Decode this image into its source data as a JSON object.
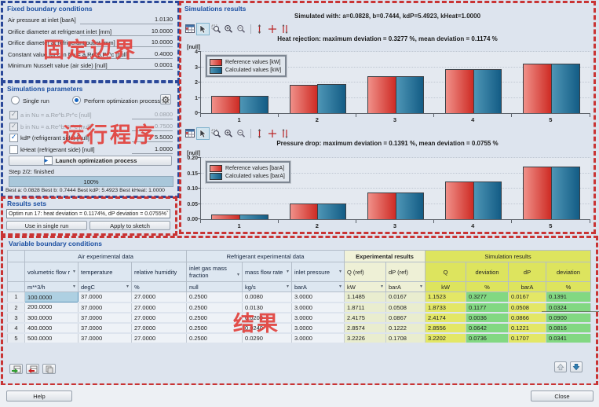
{
  "annotations": {
    "fixed_boundary_cn": "固定边界",
    "run_process_cn": "运行程序",
    "results_cn": "结果"
  },
  "colors": {
    "reference_red": "#ce2b24",
    "calculated_blue": "#135c85",
    "deviation_green": "#82d882",
    "simulation_yellow": "#e3e766",
    "annotation_red": "#c93434",
    "annotation_blue": "#2a4899"
  },
  "fixed_boundary": {
    "title": "Fixed boundary conditions",
    "fields": [
      {
        "label": "Air pressure at inlet [barA]",
        "value": "1.0130"
      },
      {
        "label": "Orifice diameter at refrigerant inlet [mm]",
        "value": "10.0000"
      },
      {
        "label": "Orifice diameter at refrigerant outlet [mm]",
        "value": "10.0000"
      },
      {
        "label": "Constant value for c in Nu = a.Re^b.Pr^c [null]",
        "value": "0.4000"
      },
      {
        "label": "Minimum Nusselt value (air side) [null]",
        "value": "0.0001"
      }
    ]
  },
  "sim_params": {
    "title": "Simulations parameters",
    "radio_single": "Single run",
    "radio_optim": "Perform optimization process",
    "checkboxes": [
      {
        "label": "a in Nu = a.Re^b.Pr^c [null]",
        "value": "0.0800",
        "checked": true,
        "disabled": true
      },
      {
        "label": "b in Nu = a.Re^b.Pr^c [null]",
        "value": "0.7500",
        "checked": true,
        "disabled": true
      },
      {
        "label": "kdP (refrigerant side) [null]",
        "value": "5.5000",
        "checked": true,
        "disabled": false
      },
      {
        "label": "kHeat (refrigerant side) [null]",
        "value": "1.0000",
        "checked": false,
        "disabled": false
      }
    ],
    "launch_label": "Launch optimization process",
    "step_text": "Step 2/2: finished",
    "progress_text": "100%",
    "best_text": "Best a: 0.0828   Best b: 0.7444   Best kdP: 5.4923   Best kHeat: 1.0000"
  },
  "results_sets": {
    "title": "Results sets",
    "dropdown_value": "Optim run 17: heat deviation = 0.1174%, dP deviation = 0.0755%",
    "use_button": "Use in single run",
    "apply_button": "Apply to sketch"
  },
  "sim_results": {
    "title": "Simulations results",
    "simulated_with": "Simulated with:   a=0.0828,   b=0.7444,   kdP=5.4923,   kHeat=1.0000"
  },
  "chart_data": [
    {
      "type": "bar",
      "title": "Heat rejection: maximum deviation = 0.3277 %, mean deviation = 0.1174 %",
      "ylabel": "[null]",
      "categories": [
        "1",
        "2",
        "3",
        "4",
        "5"
      ],
      "series": [
        {
          "name": "Reference values [kW]",
          "values": [
            1.1485,
            1.8711,
            2.4175,
            2.8574,
            3.2226
          ]
        },
        {
          "name": "Calculated values [kW]",
          "values": [
            1.1523,
            1.8733,
            2.4174,
            2.8556,
            3.2202
          ]
        }
      ],
      "ylim": [
        0,
        4
      ],
      "yticks": [
        "0",
        "1",
        "2",
        "3",
        "4"
      ],
      "grid": true,
      "legend_position": "top-left"
    },
    {
      "type": "bar",
      "title": "Pressure drop: maximum deviation = 0.1391 %, mean deviation = 0.0755 %",
      "ylabel": "[null]",
      "categories": [
        "1",
        "2",
        "3",
        "4",
        "5"
      ],
      "series": [
        {
          "name": "Reference values [barA]",
          "values": [
            0.0167,
            0.0508,
            0.0867,
            0.1222,
            0.1708
          ]
        },
        {
          "name": "Calculated values [barA]",
          "values": [
            0.0167,
            0.0508,
            0.0866,
            0.1221,
            0.1707
          ]
        }
      ],
      "ylim": [
        0,
        0.2
      ],
      "yticks": [
        "0.00",
        "0.05",
        "0.10",
        "0.15",
        "0.20"
      ],
      "grid": true,
      "legend_position": "top-left"
    }
  ],
  "toolbar_icons": [
    "chart-table-icon",
    "cursor-icon",
    "zoom-region-icon",
    "zoom-in-icon",
    "zoom-out-icon",
    "marker-single-icon",
    "marker-cross-icon",
    "marker-double-icon"
  ],
  "table": {
    "title": "Variable boundary conditions",
    "groups": [
      {
        "label": "",
        "span": 1,
        "style": "hd"
      },
      {
        "label": "Air experimental data",
        "span": 3,
        "style": "hd"
      },
      {
        "label": "Refrigerant experimental data",
        "span": 3,
        "style": "hd"
      },
      {
        "label": "Experimental results",
        "span": 2,
        "style": "hd-pale"
      },
      {
        "label": "Simulation results",
        "span": 4,
        "style": "hd-yellow"
      }
    ],
    "columns": [
      {
        "name": "",
        "unit": "",
        "style": "hd",
        "name_arrow": false,
        "unit_arrow": false
      },
      {
        "name": "volumetric flow r",
        "unit": "m**3/h",
        "style": "hd",
        "name_arrow": true,
        "unit_arrow": true
      },
      {
        "name": "temperature",
        "unit": "degC",
        "style": "hd",
        "name_arrow": false,
        "unit_arrow": true
      },
      {
        "name": "relative humidity",
        "unit": "%",
        "style": "hd",
        "name_arrow": false,
        "unit_arrow": false
      },
      {
        "name": "inlet gas mass fraction",
        "unit": "null",
        "style": "hd",
        "name_arrow": true,
        "unit_arrow": false
      },
      {
        "name": "mass flow rate",
        "unit": "kg/s",
        "style": "hd",
        "name_arrow": true,
        "unit_arrow": true
      },
      {
        "name": "inlet pressure",
        "unit": "barA",
        "style": "hd",
        "name_arrow": true,
        "unit_arrow": true
      },
      {
        "name": "Q (ref)",
        "unit": "kW",
        "style": "hd-pale2",
        "name_arrow": false,
        "unit_arrow": true
      },
      {
        "name": "dP (ref)",
        "unit": "barA",
        "style": "hd-pale2",
        "name_arrow": false,
        "unit_arrow": true
      },
      {
        "name": "Q",
        "unit": "kW",
        "style": "hd-yellow",
        "name_arrow": false,
        "unit_arrow": false
      },
      {
        "name": "deviation",
        "unit": "%",
        "style": "hd-yellow",
        "name_arrow": false,
        "unit_arrow": false
      },
      {
        "name": "dP",
        "unit": "barA",
        "style": "hd-yellow",
        "name_arrow": false,
        "unit_arrow": false
      },
      {
        "name": "deviation",
        "unit": "%",
        "style": "hd-yellow",
        "name_arrow": false,
        "unit_arrow": false
      }
    ],
    "rows": [
      [
        "1",
        "100.0000",
        "37.0000",
        "27.0000",
        "0.2500",
        "0.0080",
        "3.0000",
        "1.1485",
        "0.0167",
        "1.1523",
        "0.3277",
        "0.0167",
        "0.1391"
      ],
      [
        "2",
        "200.0000",
        "37.0000",
        "27.0000",
        "0.2500",
        "0.0130",
        "3.0000",
        "1.8711",
        "0.0508",
        "1.8733",
        "0.1177",
        "0.0508",
        "0.0324"
      ],
      [
        "3",
        "300.0000",
        "37.0000",
        "27.0000",
        "0.2500",
        "0.0200",
        "3.0000",
        "2.4175",
        "0.0867",
        "2.4174",
        "0.0036",
        "0.0866",
        "0.0900"
      ],
      [
        "4",
        "400.0000",
        "37.0000",
        "27.0000",
        "0.2500",
        "0.0240",
        "3.0000",
        "2.8574",
        "0.1222",
        "2.8556",
        "0.0642",
        "0.1221",
        "0.0816"
      ],
      [
        "5",
        "500.0000",
        "37.0000",
        "27.0000",
        "0.2500",
        "0.0290",
        "3.0000",
        "3.2226",
        "0.1708",
        "3.2202",
        "0.0736",
        "0.1707",
        "0.0341"
      ]
    ]
  },
  "footer": {
    "help": "Help",
    "close": "Close"
  }
}
